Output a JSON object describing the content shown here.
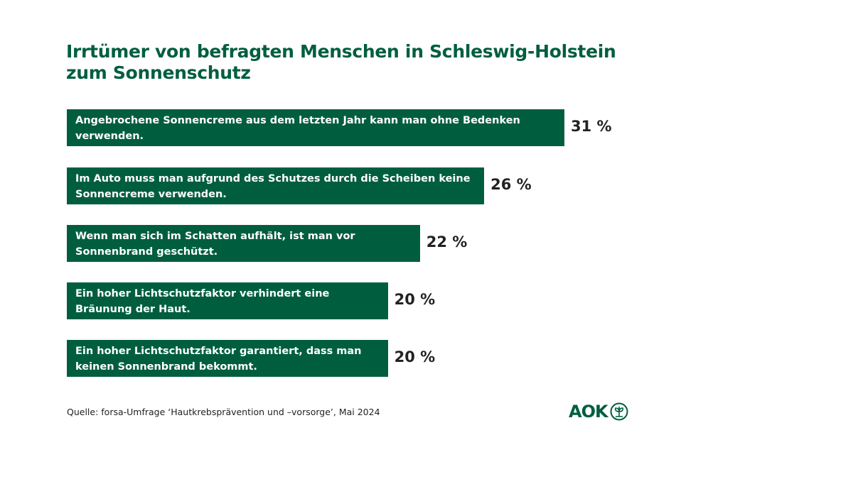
{
  "chart_data": {
    "type": "bar",
    "orientation": "horizontal",
    "title": "Irrtümer von befragten Menschen in Schleswig-Holstein zum Sonnenschutz",
    "title_lines": [
      "Irrtümer von befragten Menschen in Schleswig-Holstein",
      "zum Sonnenschutz"
    ],
    "categories": [
      "Angebrochene Sonnencreme aus dem letzten Jahr kann  man ohne Bedenken verwenden.",
      "Im Auto muss man aufgrund des Schutzes durch die Scheiben keine Sonnencreme verwenden.",
      "Wenn man sich im Schatten aufhält, ist man vor Sonnenbrand geschützt.",
      "Ein hoher Lichtschutzfaktor verhindert eine Bräunung der Haut.",
      "Ein hoher Lichtschutzfaktor garantiert, dass man keinen Sonnenbrand bekommt."
    ],
    "values": [
      31,
      26,
      22,
      20,
      20
    ],
    "value_labels": [
      "31 %",
      "26 %",
      "22 %",
      "20 %",
      "20 %"
    ],
    "unit": "%",
    "xlim": [
      0,
      31
    ],
    "bar_color": "#005e3f"
  },
  "footer": {
    "source": "Quelle: forsa-Umfrage ‘Hautkrebsprävention und –vorsorge’, Mai 2024",
    "logo": "AOK"
  }
}
